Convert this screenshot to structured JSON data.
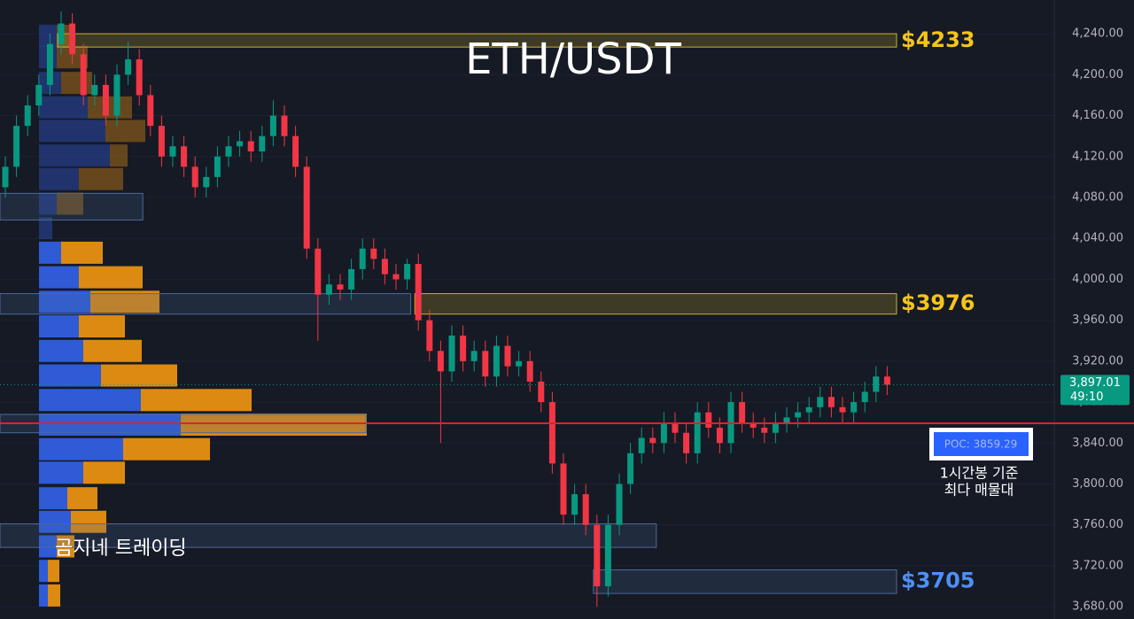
{
  "chart_data": {
    "type": "candlestick",
    "title": "ETH/USDT",
    "watermark": "곰지네 트레이딩",
    "up_color": "#089981",
    "down_color": "#f23645",
    "ylim": [
      3668,
      4273
    ],
    "yticks": [
      {
        "value": 4240,
        "label": "4,240.00"
      },
      {
        "value": 4200,
        "label": "4,200.00"
      },
      {
        "value": 4160,
        "label": "4,160.00"
      },
      {
        "value": 4120,
        "label": "4,120.00"
      },
      {
        "value": 4080,
        "label": "4,080.00"
      },
      {
        "value": 4040,
        "label": "4,040.00"
      },
      {
        "value": 4000,
        "label": "4,000.00"
      },
      {
        "value": 3960,
        "label": "3,960.00"
      },
      {
        "value": 3920,
        "label": "3,920.00"
      },
      {
        "value": 3880,
        "label": "3,880.00"
      },
      {
        "value": 3840,
        "label": "3,840.00"
      },
      {
        "value": 3800,
        "label": "3,800.00"
      },
      {
        "value": 3760,
        "label": "3,760.00"
      },
      {
        "value": 3720,
        "label": "3,720.00"
      },
      {
        "value": 3680,
        "label": "3,680.00"
      }
    ],
    "grid": true,
    "open": [
      4090,
      4110,
      4150,
      4170,
      4190,
      4230,
      4250,
      4220,
      4180,
      4190,
      4160,
      4200,
      4215,
      4180,
      4150,
      4120,
      4130,
      4110,
      4090,
      4100,
      4120,
      4130,
      4135,
      4125,
      4140,
      4160,
      4140,
      4110,
      4030,
      3985,
      3995,
      3990,
      4010,
      4030,
      4020,
      4005,
      4000,
      4015,
      3960,
      3930,
      3910,
      3945,
      3920,
      3930,
      3905,
      3935,
      3915,
      3920,
      3900,
      3880,
      3820,
      3770,
      3790,
      3760,
      3700,
      3760,
      3800,
      3830,
      3845,
      3840,
      3860,
      3850,
      3830,
      3870,
      3855,
      3840,
      3880,
      3860,
      3855,
      3850,
      3860,
      3865,
      3870,
      3875,
      3885,
      3875,
      3870,
      3880,
      3890,
      3905
    ],
    "high": [
      4120,
      4160,
      4180,
      4200,
      4240,
      4262,
      4260,
      4230,
      4200,
      4200,
      4210,
      4232,
      4225,
      4190,
      4160,
      4140,
      4140,
      4120,
      4110,
      4130,
      4140,
      4145,
      4145,
      4150,
      4175,
      4170,
      4150,
      4120,
      4040,
      4005,
      4005,
      4020,
      4040,
      4040,
      4030,
      4015,
      4020,
      4025,
      3970,
      3940,
      3955,
      3955,
      3940,
      3940,
      3945,
      3945,
      3930,
      3930,
      3910,
      3890,
      3830,
      3800,
      3800,
      3770,
      3770,
      3810,
      3840,
      3855,
      3855,
      3870,
      3870,
      3860,
      3880,
      3880,
      3865,
      3890,
      3890,
      3870,
      3865,
      3870,
      3875,
      3880,
      3885,
      3895,
      3895,
      3885,
      3890,
      3900,
      3915,
      3915
    ],
    "low": [
      4080,
      4100,
      4140,
      4160,
      4180,
      4220,
      4210,
      4170,
      4170,
      4150,
      4150,
      4190,
      4170,
      4140,
      4110,
      4110,
      4100,
      4080,
      4080,
      4090,
      4110,
      4120,
      4115,
      4115,
      4130,
      4130,
      4100,
      4020,
      3940,
      3975,
      3980,
      3980,
      4000,
      4010,
      3995,
      3990,
      3990,
      3950,
      3920,
      3840,
      3900,
      3910,
      3910,
      3895,
      3895,
      3905,
      3905,
      3890,
      3870,
      3810,
      3760,
      3760,
      3750,
      3680,
      3690,
      3750,
      3790,
      3820,
      3830,
      3830,
      3840,
      3820,
      3820,
      3845,
      3830,
      3830,
      3850,
      3845,
      3840,
      3840,
      3850,
      3855,
      3860,
      3865,
      3865,
      3860,
      3860,
      3870,
      3880,
      3887
    ],
    "close": [
      4110,
      4150,
      4170,
      4190,
      4230,
      4250,
      4220,
      4180,
      4190,
      4160,
      4200,
      4215,
      4180,
      4150,
      4120,
      4130,
      4110,
      4090,
      4100,
      4120,
      4130,
      4135,
      4125,
      4140,
      4160,
      4140,
      4110,
      4030,
      3985,
      3995,
      3990,
      4010,
      4030,
      4020,
      4005,
      4000,
      4015,
      3960,
      3930,
      3910,
      3945,
      3920,
      3930,
      3905,
      3935,
      3915,
      3920,
      3900,
      3880,
      3820,
      3770,
      3790,
      3760,
      3700,
      3760,
      3800,
      3830,
      3845,
      3840,
      3860,
      3850,
      3830,
      3870,
      3855,
      3840,
      3880,
      3860,
      3855,
      3850,
      3860,
      3865,
      3870,
      3875,
      3885,
      3875,
      3870,
      3880,
      3890,
      3905,
      3897.01
    ],
    "zones": [
      {
        "top": 4240,
        "bottom": 4227,
        "start": 5,
        "color": "#c9b22a",
        "level": {
          "value": 4233,
          "label": "$4233"
        },
        "label_color": "#f5c518"
      },
      {
        "top": 3986,
        "bottom": 3966,
        "start": 37,
        "color": "#c9b22a",
        "level": {
          "value": 3976,
          "label": "$3976"
        },
        "label_color": "#f5c518"
      },
      {
        "top": 3716,
        "bottom": 3693,
        "start": 53,
        "color": "#4a6a9a",
        "level": {
          "value": 3705,
          "label": "$3705"
        },
        "label_color": "#4f8ff7"
      },
      {
        "top": 4084,
        "bottom": 4058,
        "start": 0,
        "end": 12,
        "color": "#4a6a9a"
      },
      {
        "top": 3986,
        "bottom": 3966,
        "start": 0,
        "end": 36,
        "color": "#4a6a9a"
      },
      {
        "top": 3868,
        "bottom": 3850,
        "start": 0,
        "end": 32,
        "color": "#4a6a9a"
      },
      {
        "top": 3761,
        "bottom": 3738,
        "start": 0,
        "end": 58,
        "color": "#4a6a9a"
      }
    ],
    "profile": {
      "prices": [
        4238,
        4217,
        4192,
        4168,
        4145,
        4121,
        4098,
        4074,
        4050,
        4026,
        4002,
        3978,
        3954,
        3930,
        3906,
        3882,
        3858,
        3834,
        3811,
        3786,
        3763,
        3739,
        3715,
        3691
      ],
      "buy": [
        20,
        20,
        25,
        55,
        75,
        80,
        45,
        20,
        15,
        25,
        45,
        58,
        45,
        50,
        70,
        115,
        160,
        95,
        50,
        32,
        36,
        20,
        10,
        10
      ],
      "sell": [
        20,
        35,
        35,
        50,
        45,
        20,
        50,
        30,
        0,
        47,
        72,
        78,
        52,
        66,
        86,
        125,
        210,
        98,
        47,
        34,
        40,
        20,
        13,
        14
      ],
      "buy_color": "#2f5bd6",
      "sell_color": "#dd8a12"
    },
    "poc": {
      "value": 3859.29,
      "label": "POC: 3859.29",
      "color": "#e0222a"
    },
    "poc_note": [
      "1시간봉 기준",
      "최다 매물대"
    ],
    "last_price": {
      "value": 3897.01,
      "label": "3,897.01"
    },
    "countdown": "49:10"
  }
}
